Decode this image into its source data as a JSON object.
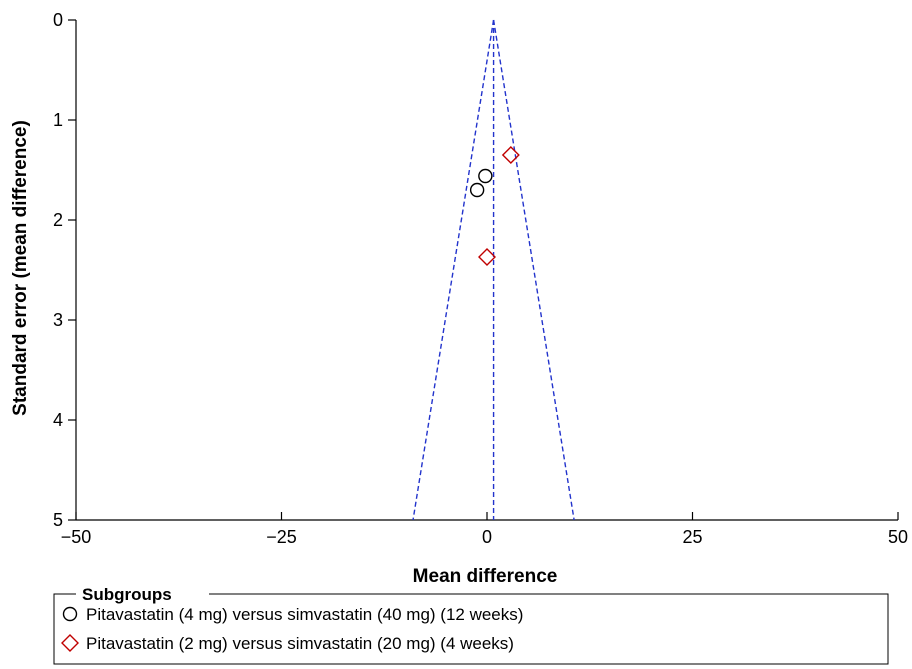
{
  "chart_data": {
    "type": "scatter",
    "subtype": "funnel",
    "xlabel": "Mean difference",
    "ylabel": "Standard error (mean difference)",
    "xlim": [
      -50,
      50
    ],
    "ylim": [
      0,
      5
    ],
    "y_reversed": true,
    "xticks": [
      -50,
      -25,
      0,
      25,
      50
    ],
    "xtick_labels": [
      "−50",
      "−25",
      "0",
      "25",
      "50"
    ],
    "yticks": [
      0,
      1,
      2,
      3,
      4,
      5
    ],
    "ytick_labels": [
      "0",
      "1",
      "2",
      "3",
      "4",
      "5"
    ],
    "grid": false,
    "pooled_estimate": 0.8,
    "funnel_lines": {
      "color": "#2233cc",
      "style": "dashed",
      "apex": [
        0.8,
        0
      ],
      "left_base": [
        -9.0,
        5
      ],
      "right_base": [
        10.6,
        5
      ]
    },
    "legend": {
      "title": "Subgroups",
      "placement": "bottom"
    },
    "series": [
      {
        "name": "Pitavastatin (4 mg) versus simvastatin (40 mg) (12 weeks)",
        "marker": "circle",
        "color": "#000000",
        "points": [
          {
            "x": -0.2,
            "y": 1.56
          },
          {
            "x": -1.2,
            "y": 1.7
          }
        ]
      },
      {
        "name": "Pitavastatin (2 mg) versus simvastatin (20 mg) (4 weeks)",
        "marker": "diamond",
        "color": "#c00000",
        "points": [
          {
            "x": 2.9,
            "y": 1.35
          },
          {
            "x": 0.0,
            "y": 2.37
          }
        ]
      }
    ]
  }
}
